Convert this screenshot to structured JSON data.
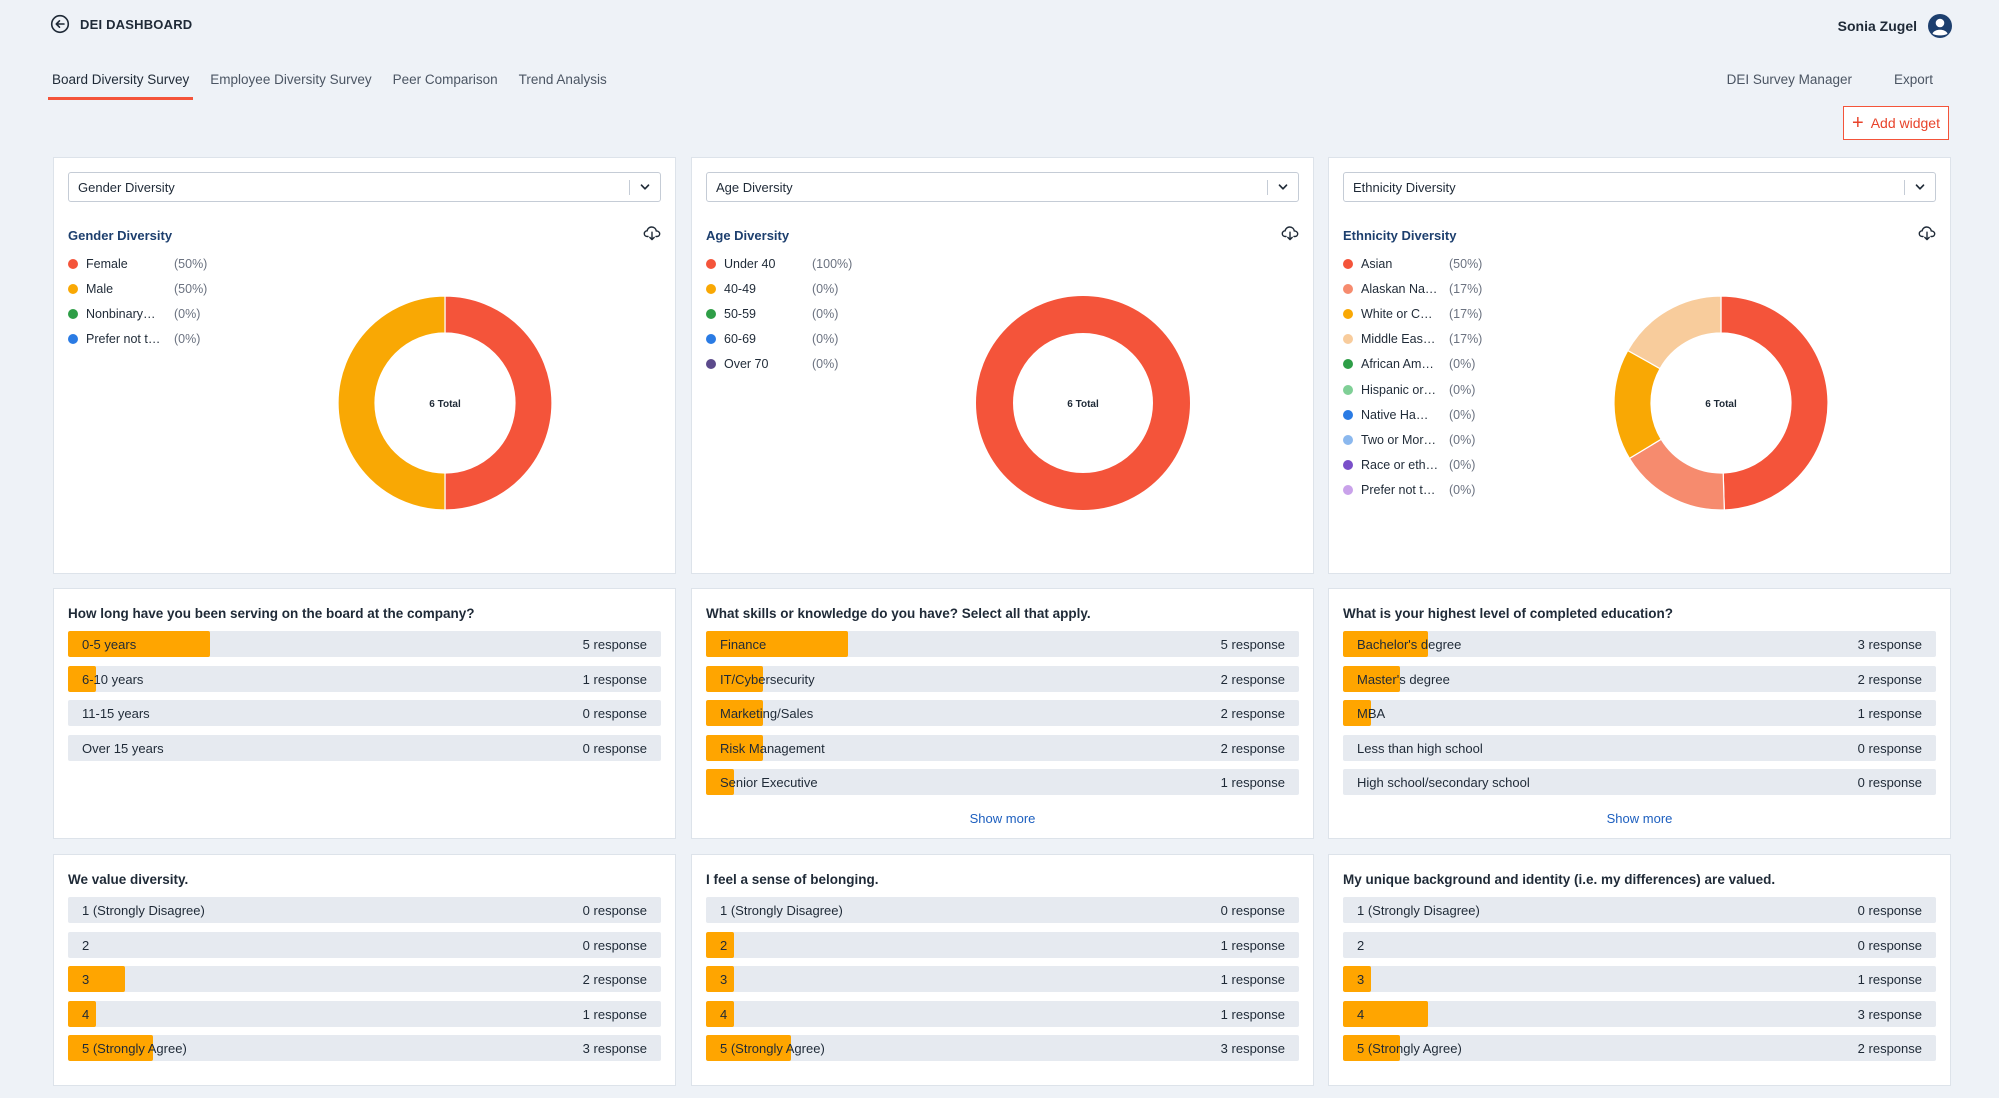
{
  "header": {
    "title": "DEI DASHBOARD",
    "user_name": "Sonia Zugel"
  },
  "tabs": [
    {
      "label": "Board Diversity Survey",
      "active": true
    },
    {
      "label": "Employee Diversity Survey",
      "active": false
    },
    {
      "label": "Peer Comparison",
      "active": false
    },
    {
      "label": "Trend Analysis",
      "active": false
    }
  ],
  "actions": {
    "survey_manager": "DEI Survey Manager",
    "export": "Export",
    "add_widget": "Add widget"
  },
  "colors": {
    "accent": "#f4543a",
    "bar_fill": "#ffa500",
    "bar_track": "#e6eaf0",
    "link": "#1d5fbf"
  },
  "icons": {
    "back": "back-arrow-icon",
    "user": "user-icon",
    "chevron": "chevron-down-icon",
    "download": "cloud-download-icon",
    "plus": "plus-icon"
  },
  "charts": [
    {
      "dropdown_value": "Gender Diversity",
      "title": "Gender Diversity",
      "center_label": "6 Total",
      "legend": [
        {
          "label": "Female",
          "pct": "(50%)",
          "color": "#f4543a",
          "value": 0.5
        },
        {
          "label": "Male",
          "pct": "(50%)",
          "color": "#f9a804",
          "value": 0.5
        },
        {
          "label": "Nonbinary…",
          "pct": "(0%)",
          "color": "#2e9e47",
          "value": 0
        },
        {
          "label": "Prefer not t…",
          "pct": "(0%)",
          "color": "#2a7be4",
          "value": 0
        }
      ]
    },
    {
      "dropdown_value": "Age Diversity",
      "title": "Age Diversity",
      "center_label": "6 Total",
      "legend": [
        {
          "label": "Under 40",
          "pct": "(100%)",
          "color": "#f4543a",
          "value": 1
        },
        {
          "label": "40-49",
          "pct": "(0%)",
          "color": "#f9a804",
          "value": 0
        },
        {
          "label": "50-59",
          "pct": "(0%)",
          "color": "#2e9e47",
          "value": 0
        },
        {
          "label": "60-69",
          "pct": "(0%)",
          "color": "#2a7be4",
          "value": 0
        },
        {
          "label": "Over 70",
          "pct": "(0%)",
          "color": "#5b4a8b",
          "value": 0
        }
      ]
    },
    {
      "dropdown_value": "Ethnicity Diversity",
      "title": "Ethnicity Diversity",
      "center_label": "6 Total",
      "legend": [
        {
          "label": "Asian",
          "pct": "(50%)",
          "color": "#f4543a",
          "value": 0.5
        },
        {
          "label": "Alaskan Na…",
          "pct": "(17%)",
          "color": "#f68b6e",
          "value": 0.17
        },
        {
          "label": "White or C…",
          "pct": "(17%)",
          "color": "#f9a804",
          "value": 0.17
        },
        {
          "label": "Middle Eas…",
          "pct": "(17%)",
          "color": "#f8cc9c",
          "value": 0.17
        },
        {
          "label": "African Am…",
          "pct": "(0%)",
          "color": "#2e9e47",
          "value": 0
        },
        {
          "label": "Hispanic or…",
          "pct": "(0%)",
          "color": "#7fcf96",
          "value": 0
        },
        {
          "label": "Native Ha…",
          "pct": "(0%)",
          "color": "#2a7be4",
          "value": 0
        },
        {
          "label": "Two or Mor…",
          "pct": "(0%)",
          "color": "#8bb8ee",
          "value": 0
        },
        {
          "label": "Race or eth…",
          "pct": "(0%)",
          "color": "#7a4fc9",
          "value": 0
        },
        {
          "label": "Prefer not t…",
          "pct": "(0%)",
          "color": "#c9a2ea",
          "value": 0
        }
      ]
    }
  ],
  "questions": [
    {
      "title": "How long have you been serving on the board at the company?",
      "show_more": "",
      "rows": [
        {
          "label": "0-5 years",
          "count": "5 response",
          "fraction": 0.24
        },
        {
          "label": "6-10 years",
          "count": "1 response",
          "fraction": 0.048
        },
        {
          "label": "11-15 years",
          "count": "0 response",
          "fraction": 0
        },
        {
          "label": "Over 15 years",
          "count": "0 response",
          "fraction": 0
        }
      ]
    },
    {
      "title": "What skills or knowledge do you have? Select all that apply.",
      "show_more": "Show more",
      "rows": [
        {
          "label": "Finance",
          "count": "5 response",
          "fraction": 0.24
        },
        {
          "label": "IT/Cybersecurity",
          "count": "2 response",
          "fraction": 0.096
        },
        {
          "label": "Marketing/Sales",
          "count": "2 response",
          "fraction": 0.096
        },
        {
          "label": "Risk Management",
          "count": "2 response",
          "fraction": 0.096
        },
        {
          "label": "Senior Executive",
          "count": "1 response",
          "fraction": 0.048
        }
      ]
    },
    {
      "title": "What is your highest level of completed education?",
      "show_more": "Show more",
      "rows": [
        {
          "label": "Bachelor's degree",
          "count": "3 response",
          "fraction": 0.144
        },
        {
          "label": "Master's degree",
          "count": "2 response",
          "fraction": 0.096
        },
        {
          "label": "MBA",
          "count": "1 response",
          "fraction": 0.048
        },
        {
          "label": "Less than high school",
          "count": "0 response",
          "fraction": 0
        },
        {
          "label": "High school/secondary school",
          "count": "0 response",
          "fraction": 0
        }
      ]
    },
    {
      "title": "We value diversity.",
      "show_more": "",
      "rows": [
        {
          "label": "1 (Strongly Disagree)",
          "count": "0 response",
          "fraction": 0
        },
        {
          "label": "2",
          "count": "0 response",
          "fraction": 0
        },
        {
          "label": "3",
          "count": "2 response",
          "fraction": 0.096
        },
        {
          "label": "4",
          "count": "1 response",
          "fraction": 0.048
        },
        {
          "label": "5 (Strongly Agree)",
          "count": "3 response",
          "fraction": 0.144
        }
      ]
    },
    {
      "title": "I feel a sense of belonging.",
      "show_more": "",
      "rows": [
        {
          "label": "1 (Strongly Disagree)",
          "count": "0 response",
          "fraction": 0
        },
        {
          "label": "2",
          "count": "1 response",
          "fraction": 0.048
        },
        {
          "label": "3",
          "count": "1 response",
          "fraction": 0.048
        },
        {
          "label": "4",
          "count": "1 response",
          "fraction": 0.048
        },
        {
          "label": "5 (Strongly Agree)",
          "count": "3 response",
          "fraction": 0.144
        }
      ]
    },
    {
      "title": "My unique background and identity (i.e. my differences) are valued.",
      "show_more": "",
      "rows": [
        {
          "label": "1 (Strongly Disagree)",
          "count": "0 response",
          "fraction": 0
        },
        {
          "label": "2",
          "count": "0 response",
          "fraction": 0
        },
        {
          "label": "3",
          "count": "1 response",
          "fraction": 0.048
        },
        {
          "label": "4",
          "count": "3 response",
          "fraction": 0.144
        },
        {
          "label": "5 (Strongly Agree)",
          "count": "2 response",
          "fraction": 0.096
        }
      ]
    }
  ]
}
